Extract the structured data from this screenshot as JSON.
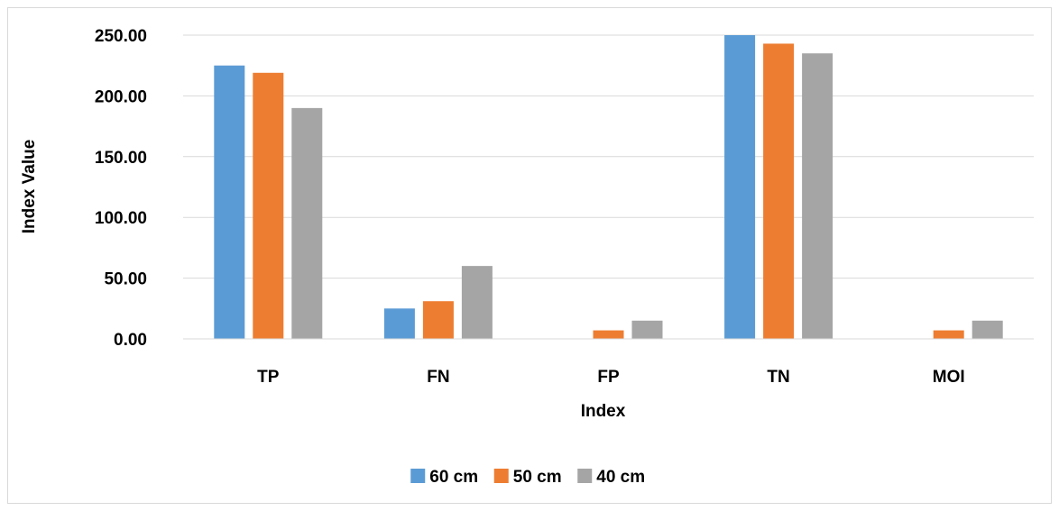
{
  "chart_data": {
    "type": "bar",
    "title": "",
    "xlabel": "Index",
    "ylabel": "Index Value",
    "categories": [
      "TP",
      "FN",
      "FP",
      "TN",
      "MOI"
    ],
    "series": [
      {
        "name": "60 cm",
        "color": "#5b9bd5",
        "values": [
          225,
          25,
          0,
          250,
          0
        ]
      },
      {
        "name": "50 cm",
        "color": "#ed7d31",
        "values": [
          219,
          31,
          7,
          243,
          7
        ]
      },
      {
        "name": "40 cm",
        "color": "#a5a5a5",
        "values": [
          190,
          60,
          15,
          235,
          15
        ]
      }
    ],
    "ylim": [
      0,
      250
    ],
    "yticks": [
      "0.00",
      "50.00",
      "100.00",
      "150.00",
      "200.00",
      "250.00"
    ],
    "grid": true,
    "legend_position": "bottom"
  }
}
